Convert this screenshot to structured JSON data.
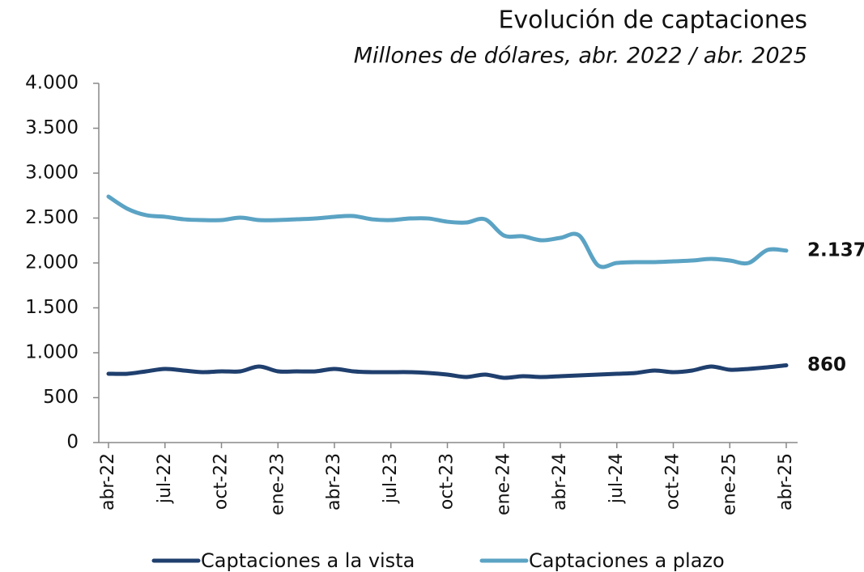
{
  "chart_data": {
    "type": "line",
    "title": "Evolución de captaciones",
    "subtitle": "Millones de dólares, abr. 2022 / abr. 2025",
    "categories": [
      "abr-22",
      null,
      null,
      "jul-22",
      null,
      null,
      "oct-22",
      null,
      null,
      "ene-23",
      null,
      null,
      "abr-23",
      null,
      null,
      "jul-23",
      null,
      null,
      "oct-23",
      null,
      null,
      "ene-24",
      null,
      null,
      "abr-24",
      null,
      null,
      "jul-24",
      null,
      null,
      "oct-24",
      null,
      null,
      "ene-25",
      null,
      null,
      "abr-25"
    ],
    "series": [
      {
        "name": "Captaciones a la vista",
        "color": "#1f3f6e",
        "values": [
          766,
          766,
          793,
          820,
          802,
          784,
          793,
          793,
          847,
          793,
          793,
          793,
          820,
          793,
          784,
          784,
          784,
          775,
          757,
          730,
          757,
          721,
          739,
          730,
          739,
          748,
          757,
          766,
          775,
          802,
          784,
          802,
          847,
          811,
          820,
          838,
          860
        ],
        "value_labels": [
          null,
          null,
          null,
          null,
          null,
          null,
          null,
          null,
          null,
          null,
          null,
          null,
          null,
          null,
          null,
          null,
          null,
          null,
          null,
          null,
          null,
          null,
          null,
          null,
          null,
          null,
          null,
          null,
          null,
          null,
          null,
          null,
          null,
          null,
          null,
          null,
          "860"
        ]
      },
      {
        "name": "Captaciones a plazo",
        "color": "#5ba3c4",
        "values": [
          2739,
          2604,
          2532,
          2514,
          2486,
          2477,
          2477,
          2505,
          2477,
          2477,
          2486,
          2495,
          2514,
          2523,
          2486,
          2477,
          2495,
          2495,
          2459,
          2450,
          2486,
          2306,
          2297,
          2252,
          2279,
          2306,
          1973,
          2000,
          2009,
          2009,
          2018,
          2027,
          2045,
          2027,
          2000,
          2144,
          2137
        ],
        "value_labels": [
          null,
          null,
          null,
          null,
          null,
          null,
          null,
          null,
          null,
          null,
          null,
          null,
          null,
          null,
          null,
          null,
          null,
          null,
          null,
          null,
          null,
          null,
          null,
          null,
          null,
          null,
          null,
          null,
          null,
          null,
          null,
          null,
          null,
          null,
          null,
          null,
          "2.137"
        ]
      }
    ],
    "ylim": [
      0,
      4000
    ],
    "yticks": [
      0,
      500,
      {
        "value": 1000,
        "label": "1.000"
      },
      {
        "value": 1500,
        "label": "1.500"
      },
      {
        "value": 2000,
        "label": "2.000"
      },
      {
        "value": 2500,
        "label": "2.500"
      },
      {
        "value": 3000,
        "label": "3.000"
      },
      {
        "value": 3500,
        "label": "3.500"
      },
      {
        "value": 4000,
        "label": "4.000"
      }
    ],
    "grid": false,
    "legend": "bottom"
  }
}
